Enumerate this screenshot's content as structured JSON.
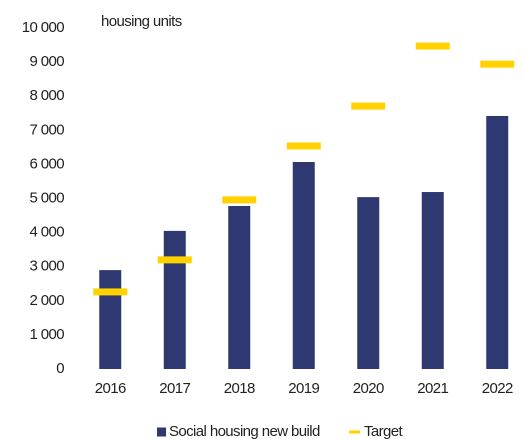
{
  "chart_data": {
    "type": "bar",
    "y_axis_label": "housing units",
    "categories": [
      "2016",
      "2017",
      "2018",
      "2019",
      "2020",
      "2021",
      "2022"
    ],
    "series": [
      {
        "name": "Social housing new build",
        "type": "bar",
        "color": "#2e3871",
        "values": [
          2900,
          4050,
          4780,
          6070,
          5040,
          5190,
          7420
        ]
      },
      {
        "name": "Target",
        "type": "marker",
        "color": "#ffd200",
        "values": [
          2260,
          3200,
          4960,
          6540,
          7710,
          9470,
          8940
        ]
      }
    ],
    "ylim": [
      0,
      10000
    ],
    "yticks": [
      0,
      {
        "value": 1000,
        "label": "1 000"
      },
      {
        "value": 2000,
        "label": "2 000"
      },
      {
        "value": 3000,
        "label": "3 000"
      },
      {
        "value": 4000,
        "label": "4 000"
      },
      {
        "value": 5000,
        "label": "5 000"
      },
      {
        "value": 6000,
        "label": "6 000"
      },
      {
        "value": 7000,
        "label": "7 000"
      },
      {
        "value": 8000,
        "label": "8 000"
      },
      {
        "value": 9000,
        "label": "9 000"
      },
      {
        "value": 10000,
        "label": "10 000"
      }
    ],
    "grid": false,
    "legend": "bottom"
  }
}
